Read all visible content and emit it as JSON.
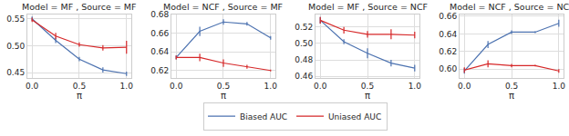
{
  "chart_data": [
    {
      "type": "line",
      "title": "Model = MF , Source = MF",
      "x_label": "π",
      "x": [
        0,
        0.25,
        0.5,
        0.75,
        1.0
      ],
      "xlim": [
        -0.05,
        1.05
      ],
      "xticks": [
        {
          "value": 0,
          "label": "0.0"
        },
        {
          "value": 0.5,
          "label": "0.5"
        },
        {
          "value": 1.0,
          "label": "1.0"
        }
      ],
      "ylim": [
        0.44,
        0.558
      ],
      "yticks": [
        {
          "value": 0.45,
          "label": "0.45"
        },
        {
          "value": 0.5,
          "label": "0.50"
        },
        {
          "value": 0.55,
          "label": "0.55"
        }
      ],
      "grid": true,
      "legend": "bottom",
      "series": [
        {
          "name": "Biased AUC",
          "color": "#4c72b0",
          "values": [
            0.55,
            0.51,
            0.475,
            0.455,
            0.448
          ],
          "error": [
            0.004,
            0.005,
            0.004,
            0.005,
            0.004
          ]
        },
        {
          "name": "Uniased AUC",
          "color": "#d62728",
          "values": [
            0.548,
            0.518,
            0.502,
            0.496,
            0.497
          ],
          "error": [
            0.004,
            0.006,
            0.004,
            0.005,
            0.012
          ]
        }
      ]
    },
    {
      "type": "line",
      "title": "Model = NCF , Source = MF",
      "x_label": "π",
      "x": [
        0,
        0.25,
        0.5,
        0.75,
        1.0
      ],
      "xlim": [
        -0.05,
        1.05
      ],
      "xticks": [
        {
          "value": 0,
          "label": "0.0"
        },
        {
          "value": 0.5,
          "label": "0.5"
        },
        {
          "value": 1.0,
          "label": "1.0"
        }
      ],
      "ylim": [
        0.612,
        0.68
      ],
      "yticks": [
        {
          "value": 0.62,
          "label": "0.62"
        },
        {
          "value": 0.64,
          "label": "0.64"
        },
        {
          "value": 0.66,
          "label": "0.66"
        },
        {
          "value": 0.68,
          "label": "0.68"
        }
      ],
      "grid": true,
      "legend": "bottom",
      "series": [
        {
          "name": "Biased AUC",
          "color": "#4c72b0",
          "values": [
            0.634,
            0.662,
            0.672,
            0.67,
            0.655
          ],
          "error": [
            0.002,
            0.005,
            0.003,
            0.002,
            0.002
          ]
        },
        {
          "name": "Uniased AUC",
          "color": "#d62728",
          "values": [
            0.634,
            0.634,
            0.628,
            0.624,
            0.62
          ],
          "error": [
            0.002,
            0.004,
            0.004,
            0.002,
            0.001
          ]
        }
      ]
    },
    {
      "type": "line",
      "title": "Model = MF , Source = NCF",
      "x_label": "π",
      "x": [
        0,
        0.25,
        0.5,
        0.75,
        1.0
      ],
      "xlim": [
        -0.05,
        1.05
      ],
      "xticks": [
        {
          "value": 0,
          "label": "0.0"
        },
        {
          "value": 0.5,
          "label": "0.5"
        },
        {
          "value": 1.0,
          "label": "1.0"
        }
      ],
      "ylim": [
        0.458,
        0.535
      ],
      "yticks": [
        {
          "value": 0.46,
          "label": "0.46"
        },
        {
          "value": 0.48,
          "label": "0.48"
        },
        {
          "value": 0.5,
          "label": "0.50"
        },
        {
          "value": 0.52,
          "label": "0.52"
        }
      ],
      "grid": true,
      "legend": "bottom",
      "series": [
        {
          "name": "Biased AUC",
          "color": "#4c72b0",
          "values": [
            0.528,
            0.502,
            0.488,
            0.476,
            0.47
          ],
          "error": [
            0.004,
            0.003,
            0.006,
            0.004,
            0.004
          ]
        },
        {
          "name": "Uniased AUC",
          "color": "#d62728",
          "values": [
            0.528,
            0.516,
            0.511,
            0.511,
            0.51
          ],
          "error": [
            0.004,
            0.004,
            0.004,
            0.006,
            0.004
          ]
        }
      ]
    },
    {
      "type": "line",
      "title": "Model = NCF , Source = NCF",
      "x_label": "π",
      "x": [
        0,
        0.25,
        0.5,
        0.75,
        1.0
      ],
      "xlim": [
        -0.05,
        1.05
      ],
      "xticks": [
        {
          "value": 0,
          "label": "0.0"
        },
        {
          "value": 0.5,
          "label": "0.5"
        },
        {
          "value": 1.0,
          "label": "1.0"
        }
      ],
      "ylim": [
        0.59,
        0.662
      ],
      "yticks": [
        {
          "value": 0.6,
          "label": "0.60"
        },
        {
          "value": 0.62,
          "label": "0.62"
        },
        {
          "value": 0.64,
          "label": "0.64"
        },
        {
          "value": 0.66,
          "label": "0.66"
        }
      ],
      "grid": true,
      "legend": "bottom",
      "series": [
        {
          "name": "Biased AUC",
          "color": "#4c72b0",
          "values": [
            0.598,
            0.628,
            0.642,
            0.642,
            0.652
          ],
          "error": [
            0.003,
            0.004,
            0.002,
            0.001,
            0.004
          ]
        },
        {
          "name": "Uniased AUC",
          "color": "#d62728",
          "values": [
            0.599,
            0.606,
            0.604,
            0.604,
            0.598
          ],
          "error": [
            0.003,
            0.004,
            0.002,
            0.001,
            0.002
          ]
        }
      ]
    }
  ]
}
